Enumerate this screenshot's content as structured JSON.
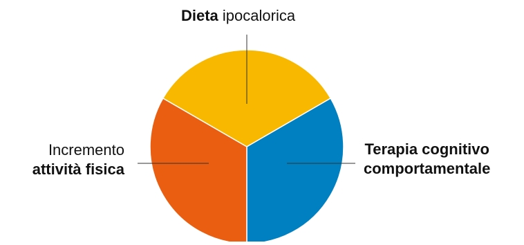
{
  "diagram": {
    "segments": [
      {
        "id": "dieta",
        "color": "#F8B800",
        "share": 1
      },
      {
        "id": "terapia",
        "color": "#0080C0",
        "share": 1
      },
      {
        "id": "attivita",
        "color": "#E95E10",
        "share": 1
      }
    ],
    "labels": {
      "top": {
        "bold": "Dieta",
        "normal": " ipocalorica"
      },
      "left": {
        "normal": "Incremento",
        "bold": "attività fisica"
      },
      "right": {
        "line1": "Terapia cognitivo",
        "line2": "comportamentale"
      }
    },
    "leader_color": "#333333"
  }
}
